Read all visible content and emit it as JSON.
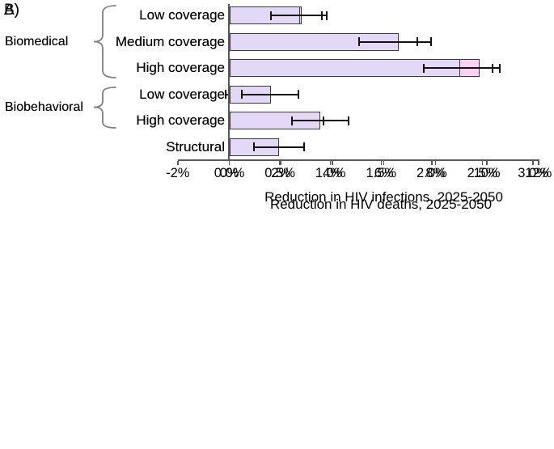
{
  "chart_data": [
    {
      "type": "bar",
      "orientation": "horizontal",
      "panel_label": "A)",
      "xlabel": "Reduction in HIV infections, 2025-2050",
      "xlim": [
        -2,
        12
      ],
      "xtick_values": [
        -2,
        0,
        2,
        4,
        6,
        8,
        10,
        12
      ],
      "xtick_labels": [
        "-2%",
        "0%",
        "2%",
        "4%",
        "6%",
        "8%",
        "10%",
        "12%"
      ],
      "grid": false,
      "legend": false,
      "groups": [
        {
          "label": "Biomedical",
          "row_indexes": [
            0,
            1,
            2
          ]
        },
        {
          "label": "Biobehavioral",
          "row_indexes": [
            3,
            4
          ]
        }
      ],
      "categories": [
        "Low coverage",
        "Medium coverage",
        "High coverage",
        "Low coverage",
        "High coverage",
        "Structural"
      ],
      "values": [
        2.8,
        6.5,
        9.7,
        0.65,
        2.9,
        1.2
      ],
      "ci_low": [
        1.9,
        5.7,
        8.9,
        -0.15,
        2.1,
        0.45
      ],
      "ci_high": [
        3.6,
        7.3,
        10.5,
        1.4,
        3.65,
        1.85
      ],
      "bar_color": "#fcd0f4",
      "bar_border_color": "#3a3a3a",
      "axis_color": "#595959",
      "error_bar_color": "#121212",
      "unit": "%"
    },
    {
      "type": "bar",
      "orientation": "horizontal",
      "panel_label": "B)",
      "xlabel": "Reduction in HIV deaths, 2025-2050",
      "xlim": [
        0,
        3
      ],
      "xtick_values": [
        0,
        0.5,
        1,
        1.5,
        2,
        2.5,
        3
      ],
      "xtick_labels": [
        "0.0%",
        "0.5%",
        "1.0%",
        "1.5%",
        "2.0%",
        "2.5%",
        "3.0%"
      ],
      "grid": false,
      "legend": false,
      "groups": [
        {
          "label": "Biomedical",
          "row_indexes": [
            0,
            1,
            2
          ]
        },
        {
          "label": "Biobehavioral",
          "row_indexes": [
            3,
            4
          ]
        }
      ],
      "categories": [
        "Low coverage",
        "Medium coverage",
        "High coverage",
        "Low coverage",
        "High coverage",
        "Structural"
      ],
      "values": [
        0.7,
        1.67,
        2.28,
        0.41,
        0.9,
        0.49
      ],
      "ci_low": [
        0.41,
        1.28,
        1.92,
        0.12,
        0.62,
        0.24
      ],
      "ci_high": [
        0.96,
        1.99,
        2.6,
        0.68,
        1.18,
        0.74
      ],
      "bar_color": "#e4d8f7",
      "bar_border_color": "#3a3a3a",
      "axis_color": "#595959",
      "error_bar_color": "#121212",
      "unit": "%"
    }
  ]
}
